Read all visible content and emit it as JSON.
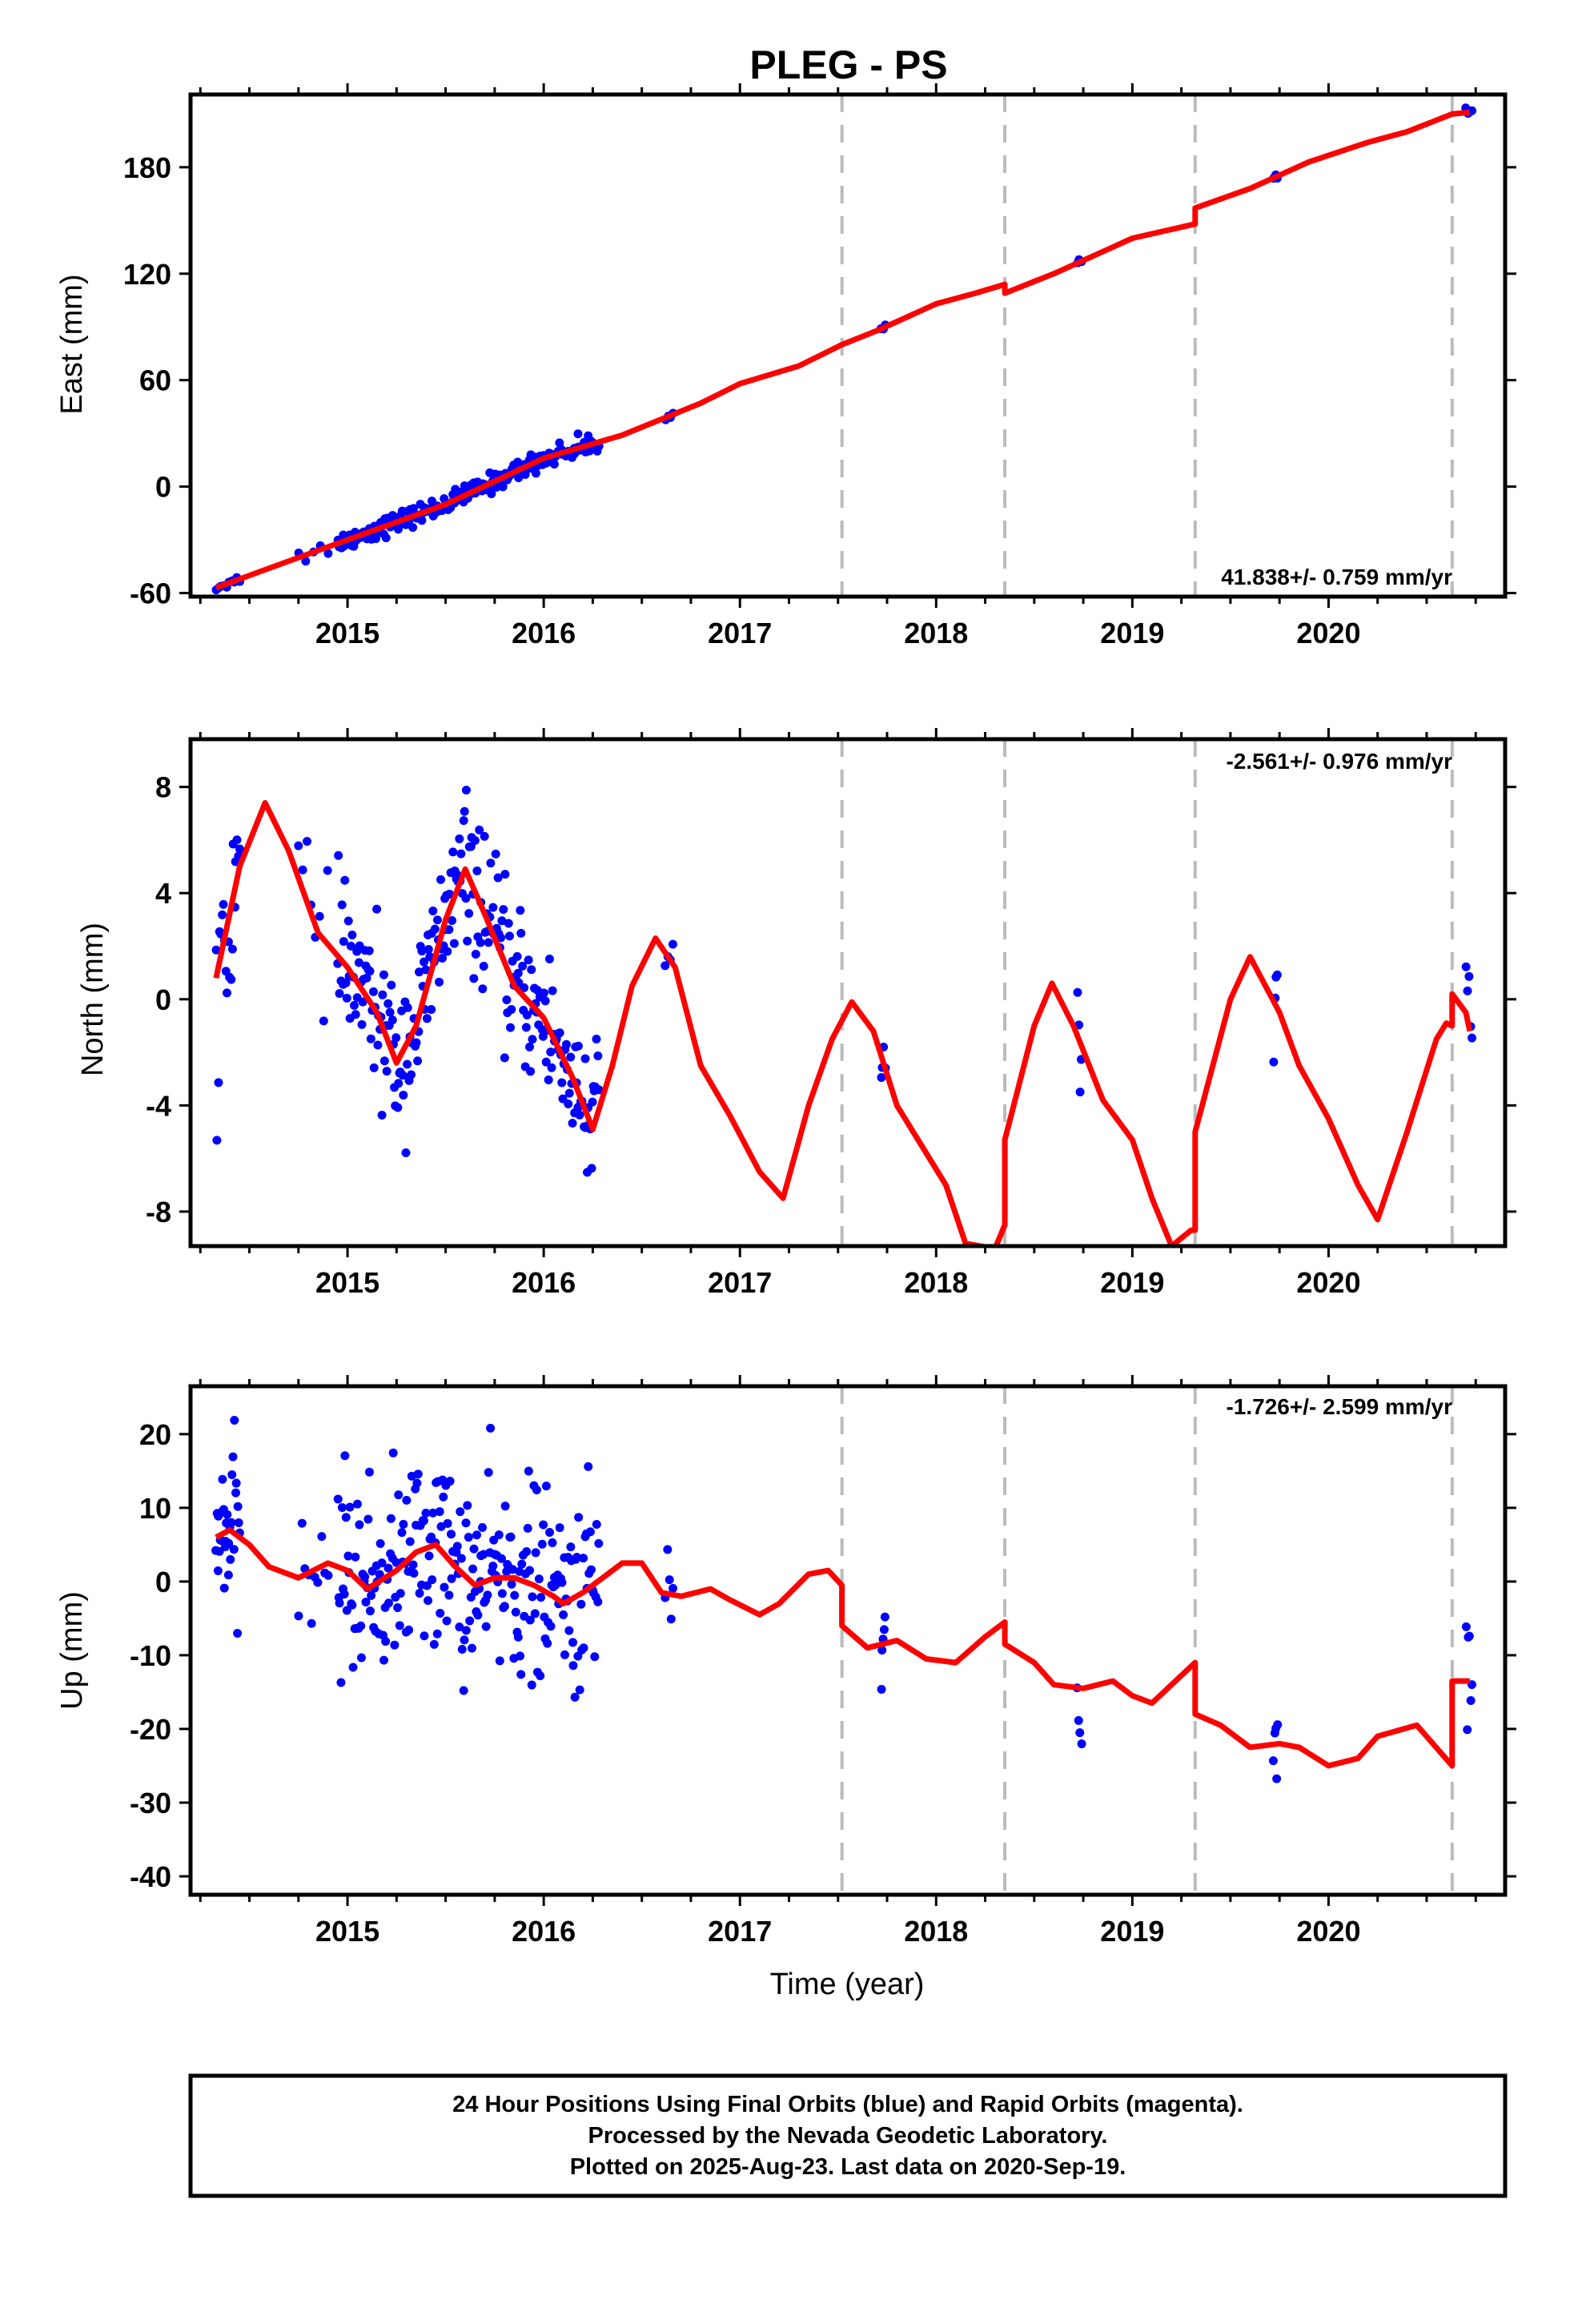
{
  "title": "PLEG - PS",
  "chart_data": [
    {
      "type": "scatter",
      "ylabel": "East (mm)",
      "rate": "41.838+/- 0.759 mm/yr",
      "xlim": [
        2014.2,
        2020.9
      ],
      "ylim": [
        -62,
        221
      ],
      "yticks": [
        -60,
        0,
        60,
        120,
        180
      ],
      "xticks": [
        2015,
        2016,
        2017,
        2018,
        2019,
        2020
      ],
      "xticklabels": [
        "2015",
        "2016",
        "2017",
        "2018",
        "2019",
        "2020"
      ],
      "offsets": [
        2017.52,
        2018.35,
        2019.32,
        2020.63
      ],
      "model": [
        [
          2014.33,
          -57
        ],
        [
          2014.6,
          -46
        ],
        [
          2015.0,
          -30
        ],
        [
          2015.5,
          -10
        ],
        [
          2016.0,
          16
        ],
        [
          2016.4,
          29
        ],
        [
          2016.8,
          47
        ],
        [
          2017.0,
          58
        ],
        [
          2017.3,
          68
        ],
        [
          2017.52,
          80
        ],
        [
          2017.7,
          88
        ],
        [
          2018.0,
          103
        ],
        [
          2018.2,
          109
        ],
        [
          2018.35,
          114
        ],
        [
          2018.35,
          109
        ],
        [
          2018.6,
          120
        ],
        [
          2019.0,
          140
        ],
        [
          2019.32,
          148
        ],
        [
          2019.32,
          157
        ],
        [
          2019.6,
          168
        ],
        [
          2019.9,
          183
        ],
        [
          2020.2,
          194
        ],
        [
          2020.4,
          200
        ],
        [
          2020.63,
          210
        ],
        [
          2020.72,
          211
        ]
      ],
      "clusters": [
        {
          "x0": 2014.33,
          "x1": 2014.45,
          "n": 10,
          "spread": 1.2
        },
        {
          "x0": 2014.75,
          "x1": 2014.9,
          "n": 5,
          "spread": 2.5
        },
        {
          "x0": 2014.95,
          "x1": 2016.28,
          "n": 200,
          "spread": 2.8
        },
        {
          "x0": 2016.62,
          "x1": 2016.66,
          "n": 4,
          "spread": 1.0
        },
        {
          "x0": 2017.72,
          "x1": 2017.74,
          "n": 3,
          "spread": 1.0
        },
        {
          "x0": 2018.72,
          "x1": 2018.74,
          "n": 3,
          "spread": 1.0
        },
        {
          "x0": 2019.72,
          "x1": 2019.74,
          "n": 3,
          "spread": 1.2
        },
        {
          "x0": 2020.7,
          "x1": 2020.73,
          "n": 4,
          "spread": 1.0
        }
      ]
    },
    {
      "type": "scatter",
      "ylabel": "North (mm)",
      "rate": "-2.561+/- 0.976 mm/yr",
      "xlim": [
        2014.2,
        2020.9
      ],
      "ylim": [
        -9.3,
        9.8
      ],
      "yticks": [
        -8,
        -4,
        0,
        4,
        8
      ],
      "xticks": [
        2015,
        2016,
        2017,
        2018,
        2019,
        2020
      ],
      "xticklabels": [
        "2015",
        "2016",
        "2017",
        "2018",
        "2019",
        "2020"
      ],
      "offsets": [
        2017.52,
        2018.35,
        2019.32,
        2020.63
      ],
      "model": [
        [
          2014.33,
          0.8
        ],
        [
          2014.45,
          5.0
        ],
        [
          2014.58,
          7.4
        ],
        [
          2014.7,
          5.6
        ],
        [
          2014.85,
          2.5
        ],
        [
          2015.0,
          1.2
        ],
        [
          2015.15,
          -0.5
        ],
        [
          2015.25,
          -2.4
        ],
        [
          2015.35,
          -1.0
        ],
        [
          2015.5,
          3.0
        ],
        [
          2015.6,
          4.9
        ],
        [
          2015.7,
          3.2
        ],
        [
          2015.85,
          0.5
        ],
        [
          2016.0,
          -0.7
        ],
        [
          2016.15,
          -3.0
        ],
        [
          2016.25,
          -4.9
        ],
        [
          2016.35,
          -2.5
        ],
        [
          2016.45,
          0.5
        ],
        [
          2016.57,
          2.3
        ],
        [
          2016.67,
          1.2
        ],
        [
          2016.8,
          -2.5
        ],
        [
          2016.95,
          -4.4
        ],
        [
          2017.1,
          -6.5
        ],
        [
          2017.22,
          -7.5
        ],
        [
          2017.35,
          -4.0
        ],
        [
          2017.47,
          -1.5
        ],
        [
          2017.57,
          -0.1
        ],
        [
          2017.68,
          -1.2
        ],
        [
          2017.8,
          -4.0
        ],
        [
          2017.95,
          -5.8
        ],
        [
          2018.05,
          -7.0
        ],
        [
          2018.15,
          -9.2
        ],
        [
          2018.3,
          -9.4
        ],
        [
          2018.35,
          -8.5
        ],
        [
          2018.35,
          -5.3
        ],
        [
          2018.5,
          -1.0
        ],
        [
          2018.59,
          0.6
        ],
        [
          2018.7,
          -1.0
        ],
        [
          2018.85,
          -3.8
        ],
        [
          2019.0,
          -5.3
        ],
        [
          2019.1,
          -7.5
        ],
        [
          2019.2,
          -9.3
        ],
        [
          2019.3,
          -8.7
        ],
        [
          2019.32,
          -8.7
        ],
        [
          2019.32,
          -5.0
        ],
        [
          2019.5,
          0.0
        ],
        [
          2019.6,
          1.6
        ],
        [
          2019.75,
          -0.5
        ],
        [
          2019.85,
          -2.5
        ],
        [
          2020.0,
          -4.5
        ],
        [
          2020.15,
          -7.0
        ],
        [
          2020.25,
          -8.3
        ],
        [
          2020.4,
          -5.0
        ],
        [
          2020.55,
          -1.5
        ],
        [
          2020.6,
          -0.9
        ],
        [
          2020.63,
          -1.0
        ],
        [
          2020.63,
          0.2
        ],
        [
          2020.7,
          -0.5
        ],
        [
          2020.72,
          -1.2
        ]
      ],
      "clusters": [
        {
          "x0": 2014.33,
          "x1": 2014.45,
          "n": 20,
          "spread": 1.8
        },
        {
          "x0": 2014.75,
          "x1": 2014.9,
          "n": 8,
          "spread": 1.2
        },
        {
          "x0": 2014.95,
          "x1": 2016.28,
          "n": 250,
          "spread": 1.4
        },
        {
          "x0": 2016.62,
          "x1": 2016.66,
          "n": 4,
          "spread": 0.7
        },
        {
          "x0": 2017.72,
          "x1": 2017.74,
          "n": 4,
          "spread": 0.9
        },
        {
          "x0": 2018.72,
          "x1": 2018.74,
          "n": 4,
          "spread": 1.2
        },
        {
          "x0": 2019.72,
          "x1": 2019.74,
          "n": 4,
          "spread": 0.8
        },
        {
          "x0": 2020.7,
          "x1": 2020.73,
          "n": 5,
          "spread": 1.5
        }
      ]
    },
    {
      "type": "scatter",
      "ylabel": "Up (mm)",
      "xlabel": "Time (year)",
      "rate": "-1.726+/- 2.599 mm/yr",
      "xlim": [
        2014.2,
        2020.9
      ],
      "ylim": [
        -42.5,
        26.5
      ],
      "yticks": [
        -40,
        -30,
        -20,
        -10,
        0,
        10,
        20
      ],
      "xticks": [
        2015,
        2016,
        2017,
        2018,
        2019,
        2020
      ],
      "xticklabels": [
        "2015",
        "2016",
        "2017",
        "2018",
        "2019",
        "2020"
      ],
      "offsets": [
        2017.52,
        2018.35,
        2019.32,
        2020.63
      ],
      "model": [
        [
          2014.33,
          6.0
        ],
        [
          2014.4,
          7.0
        ],
        [
          2014.5,
          5.0
        ],
        [
          2014.6,
          2.0
        ],
        [
          2014.75,
          0.5
        ],
        [
          2014.9,
          2.5
        ],
        [
          2015.0,
          1.5
        ],
        [
          2015.1,
          -1.0
        ],
        [
          2015.25,
          1.5
        ],
        [
          2015.35,
          4.0
        ],
        [
          2015.45,
          5.0
        ],
        [
          2015.55,
          2.0
        ],
        [
          2015.65,
          -0.5
        ],
        [
          2015.75,
          0.5
        ],
        [
          2015.85,
          0.5
        ],
        [
          2015.95,
          -0.5
        ],
        [
          2016.05,
          -2.0
        ],
        [
          2016.1,
          -3.0
        ],
        [
          2016.2,
          -1.5
        ],
        [
          2016.3,
          0.5
        ],
        [
          2016.4,
          2.5
        ],
        [
          2016.5,
          2.5
        ],
        [
          2016.6,
          -1.5
        ],
        [
          2016.7,
          -2.0
        ],
        [
          2016.85,
          -1.0
        ],
        [
          2016.95,
          -2.5
        ],
        [
          2017.1,
          -4.5
        ],
        [
          2017.2,
          -3.0
        ],
        [
          2017.35,
          1.0
        ],
        [
          2017.45,
          1.5
        ],
        [
          2017.52,
          -0.5
        ],
        [
          2017.52,
          -6.0
        ],
        [
          2017.65,
          -9.0
        ],
        [
          2017.8,
          -8.0
        ],
        [
          2017.95,
          -10.5
        ],
        [
          2018.1,
          -11.0
        ],
        [
          2018.25,
          -7.5
        ],
        [
          2018.35,
          -5.5
        ],
        [
          2018.35,
          -8.5
        ],
        [
          2018.5,
          -11.0
        ],
        [
          2018.6,
          -14.0
        ],
        [
          2018.75,
          -14.5
        ],
        [
          2018.9,
          -13.5
        ],
        [
          2019.0,
          -15.5
        ],
        [
          2019.1,
          -16.5
        ],
        [
          2019.2,
          -14.0
        ],
        [
          2019.32,
          -11.0
        ],
        [
          2019.32,
          -18.0
        ],
        [
          2019.45,
          -19.5
        ],
        [
          2019.6,
          -22.5
        ],
        [
          2019.75,
          -22.0
        ],
        [
          2019.85,
          -22.5
        ],
        [
          2020.0,
          -25.0
        ],
        [
          2020.15,
          -24.0
        ],
        [
          2020.25,
          -21.0
        ],
        [
          2020.45,
          -19.5
        ],
        [
          2020.63,
          -25.0
        ],
        [
          2020.63,
          -13.5
        ],
        [
          2020.72,
          -13.5
        ]
      ],
      "clusters": [
        {
          "x0": 2014.33,
          "x1": 2014.45,
          "n": 30,
          "spread": 5.0
        },
        {
          "x0": 2014.75,
          "x1": 2014.9,
          "n": 10,
          "spread": 7.0
        },
        {
          "x0": 2014.95,
          "x1": 2016.28,
          "n": 250,
          "spread": 6.5
        },
        {
          "x0": 2016.62,
          "x1": 2016.66,
          "n": 5,
          "spread": 3.5
        },
        {
          "x0": 2017.72,
          "x1": 2017.74,
          "n": 5,
          "spread": 3.5
        },
        {
          "x0": 2018.72,
          "x1": 2018.74,
          "n": 4,
          "spread": 6.0
        },
        {
          "x0": 2019.72,
          "x1": 2019.74,
          "n": 5,
          "spread": 4.0
        },
        {
          "x0": 2020.7,
          "x1": 2020.73,
          "n": 6,
          "spread": 8.0
        }
      ]
    }
  ],
  "footer": {
    "line1": "24 Hour Positions Using Final Orbits (blue) and Rapid Orbits (magenta).",
    "line2": "Processed by the Nevada Geodetic Laboratory.",
    "line3": "Plotted on 2025-Aug-23. Last data on 2020-Sep-19."
  },
  "colors": {
    "points": "#0000ff",
    "model": "#ff0000",
    "offsets": "#bbbbbb"
  }
}
